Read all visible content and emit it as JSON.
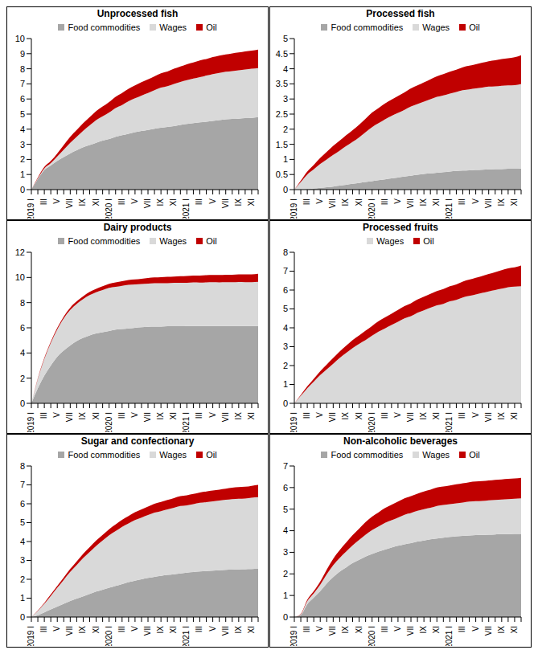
{
  "chart_data": [
    {
      "type": "area",
      "title": "Unprocessed fish",
      "stacked": true,
      "grid": false,
      "legend": "top",
      "categories": [
        "2019 I",
        null,
        "III",
        null,
        "V",
        null,
        "VII",
        null,
        "IX",
        null,
        "XI",
        null,
        "2020 I",
        null,
        "III",
        null,
        "V",
        null,
        "VII",
        null,
        "IX",
        null,
        "XI",
        null,
        "2021 I",
        null,
        "III",
        null,
        "V",
        null,
        "VII",
        null,
        "IX",
        null,
        "XI",
        null
      ],
      "ylim": [
        0,
        10
      ],
      "yticks": [
        0,
        1,
        2,
        3,
        4,
        5,
        6,
        7,
        8,
        9,
        10
      ],
      "series": [
        {
          "name": "Food commodities",
          "color": "#a6a6a6",
          "values": [
            0,
            0.7,
            1.3,
            1.6,
            1.9,
            2.15,
            2.4,
            2.6,
            2.8,
            2.95,
            3.1,
            3.25,
            3.35,
            3.5,
            3.6,
            3.7,
            3.8,
            3.88,
            3.95,
            4.03,
            4.1,
            4.15,
            4.2,
            4.28,
            4.35,
            4.4,
            4.45,
            4.5,
            4.55,
            4.6,
            4.65,
            4.68,
            4.7,
            4.73,
            4.75,
            4.8
          ]
        },
        {
          "name": "Wages",
          "color": "#d9d9d9",
          "values": [
            0,
            0.05,
            0.1,
            0.15,
            0.3,
            0.5,
            0.7,
            0.9,
            1.1,
            1.3,
            1.5,
            1.6,
            1.75,
            1.9,
            2.0,
            2.15,
            2.25,
            2.35,
            2.45,
            2.55,
            2.65,
            2.7,
            2.8,
            2.85,
            2.9,
            2.95,
            3.0,
            3.05,
            3.1,
            3.12,
            3.15,
            3.17,
            3.2,
            3.22,
            3.25,
            3.25
          ]
        },
        {
          "name": "Oil",
          "color": "#c00000",
          "values": [
            0,
            0.05,
            0.1,
            0.15,
            0.2,
            0.3,
            0.4,
            0.45,
            0.5,
            0.55,
            0.6,
            0.65,
            0.7,
            0.75,
            0.8,
            0.82,
            0.85,
            0.88,
            0.9,
            0.92,
            0.95,
            0.97,
            1.0,
            1.02,
            1.05,
            1.07,
            1.1,
            1.1,
            1.12,
            1.15,
            1.15,
            1.17,
            1.18,
            1.2,
            1.2,
            1.22
          ]
        }
      ]
    },
    {
      "type": "area",
      "title": "Processed fish",
      "stacked": true,
      "grid": false,
      "legend": "top",
      "categories": [
        "2019 I",
        null,
        "III",
        null,
        "V",
        null,
        "VII",
        null,
        "IX",
        null,
        "XI",
        null,
        "2020 I",
        null,
        "III",
        null,
        "V",
        null,
        "VII",
        null,
        "IX",
        null,
        "XI",
        null,
        "2021 I",
        null,
        "III",
        null,
        "V",
        null,
        "VII",
        null,
        "IX",
        null,
        "XI",
        null
      ],
      "ylim": [
        0,
        5
      ],
      "yticks": [
        0,
        0.5,
        1,
        1.5,
        2,
        2.5,
        3,
        3.5,
        4,
        4.5,
        5
      ],
      "series": [
        {
          "name": "Food commodities",
          "color": "#a6a6a6",
          "values": [
            0,
            0.01,
            0.02,
            0.04,
            0.06,
            0.08,
            0.1,
            0.13,
            0.16,
            0.19,
            0.22,
            0.25,
            0.28,
            0.31,
            0.34,
            0.37,
            0.4,
            0.43,
            0.46,
            0.49,
            0.52,
            0.54,
            0.56,
            0.58,
            0.6,
            0.62,
            0.63,
            0.64,
            0.65,
            0.66,
            0.67,
            0.68,
            0.68,
            0.69,
            0.69,
            0.7
          ]
        },
        {
          "name": "Wages",
          "color": "#d9d9d9",
          "values": [
            0,
            0.24,
            0.48,
            0.63,
            0.79,
            0.92,
            1.05,
            1.16,
            1.28,
            1.39,
            1.51,
            1.65,
            1.79,
            1.89,
            1.99,
            2.07,
            2.14,
            2.21,
            2.29,
            2.34,
            2.39,
            2.45,
            2.51,
            2.54,
            2.58,
            2.61,
            2.66,
            2.68,
            2.7,
            2.72,
            2.74,
            2.74,
            2.76,
            2.76,
            2.77,
            2.8
          ]
        },
        {
          "name": "Oil",
          "color": "#c00000",
          "values": [
            0,
            0.05,
            0.1,
            0.15,
            0.2,
            0.25,
            0.3,
            0.33,
            0.36,
            0.39,
            0.42,
            0.45,
            0.48,
            0.5,
            0.52,
            0.54,
            0.56,
            0.58,
            0.6,
            0.62,
            0.64,
            0.66,
            0.68,
            0.7,
            0.72,
            0.74,
            0.76,
            0.78,
            0.8,
            0.82,
            0.84,
            0.86,
            0.88,
            0.9,
            0.92,
            0.95
          ]
        }
      ]
    },
    {
      "type": "area",
      "title": "Dairy products",
      "stacked": true,
      "grid": false,
      "legend": "top",
      "categories": [
        "2019 I",
        null,
        "III",
        null,
        "V",
        null,
        "VII",
        null,
        "IX",
        null,
        "XI",
        null,
        "2020 I",
        null,
        "III",
        null,
        "V",
        null,
        "VII",
        null,
        "IX",
        null,
        "XI",
        null,
        "2021 I",
        null,
        "III",
        null,
        "V",
        null,
        "VII",
        null,
        "IX",
        null,
        "XI",
        null
      ],
      "ylim": [
        0,
        12
      ],
      "yticks": [
        0,
        2,
        4,
        6,
        8,
        10,
        12
      ],
      "series": [
        {
          "name": "Food commodities",
          "color": "#a6a6a6",
          "values": [
            0,
            1.2,
            2.2,
            3.0,
            3.7,
            4.2,
            4.6,
            4.95,
            5.2,
            5.4,
            5.55,
            5.65,
            5.75,
            5.85,
            5.9,
            5.95,
            6.0,
            6.05,
            6.08,
            6.1,
            6.1,
            6.12,
            6.12,
            6.13,
            6.15,
            6.15,
            6.15,
            6.15,
            6.15,
            6.15,
            6.15,
            6.15,
            6.15,
            6.15,
            6.15,
            6.15
          ]
        },
        {
          "name": "Wages",
          "color": "#d9d9d9",
          "values": [
            0,
            0.75,
            1.32,
            1.8,
            2.18,
            2.55,
            2.82,
            2.95,
            3.08,
            3.2,
            3.28,
            3.35,
            3.43,
            3.41,
            3.44,
            3.47,
            3.45,
            3.43,
            3.43,
            3.44,
            3.44,
            3.43,
            3.45,
            3.45,
            3.43,
            3.45,
            3.44,
            3.46,
            3.47,
            3.46,
            3.47,
            3.47,
            3.49,
            3.48,
            3.47,
            3.5
          ]
        },
        {
          "name": "Oil",
          "color": "#c00000",
          "values": [
            0,
            0.05,
            0.08,
            0.1,
            0.12,
            0.15,
            0.18,
            0.2,
            0.22,
            0.25,
            0.27,
            0.3,
            0.32,
            0.34,
            0.36,
            0.38,
            0.4,
            0.42,
            0.44,
            0.46,
            0.48,
            0.5,
            0.5,
            0.52,
            0.54,
            0.55,
            0.56,
            0.57,
            0.58,
            0.59,
            0.6,
            0.6,
            0.61,
            0.62,
            0.63,
            0.65
          ]
        }
      ]
    },
    {
      "type": "area",
      "title": "Processed fruits",
      "stacked": true,
      "grid": false,
      "legend": "top",
      "categories": [
        "2019 I",
        null,
        "III",
        null,
        "V",
        null,
        "VII",
        null,
        "IX",
        null,
        "XI",
        null,
        "2020 I",
        null,
        "III",
        null,
        "V",
        null,
        "VII",
        null,
        "IX",
        null,
        "XI",
        null,
        "2021 I",
        null,
        "III",
        null,
        "V",
        null,
        "VII",
        null,
        "IX",
        null,
        "XI",
        null
      ],
      "ylim": [
        0,
        8
      ],
      "yticks": [
        0,
        1,
        2,
        3,
        4,
        5,
        6,
        7,
        8
      ],
      "series": [
        {
          "name": "Wages",
          "color": "#d9d9d9",
          "values": [
            0,
            0.4,
            0.8,
            1.15,
            1.5,
            1.8,
            2.1,
            2.4,
            2.67,
            2.93,
            3.15,
            3.35,
            3.58,
            3.8,
            3.97,
            4.15,
            4.32,
            4.5,
            4.62,
            4.8,
            4.93,
            5.06,
            5.19,
            5.27,
            5.4,
            5.48,
            5.61,
            5.69,
            5.77,
            5.85,
            5.93,
            6.0,
            6.07,
            6.15,
            6.18,
            6.2
          ]
        },
        {
          "name": "Oil",
          "color": "#c00000",
          "values": [
            0,
            0.05,
            0.1,
            0.15,
            0.2,
            0.25,
            0.3,
            0.35,
            0.38,
            0.42,
            0.45,
            0.5,
            0.52,
            0.55,
            0.58,
            0.6,
            0.63,
            0.65,
            0.68,
            0.7,
            0.72,
            0.74,
            0.76,
            0.78,
            0.8,
            0.82,
            0.84,
            0.86,
            0.88,
            0.9,
            0.92,
            0.95,
            0.98,
            1.0,
            1.02,
            1.1
          ]
        }
      ]
    },
    {
      "type": "area",
      "title": "Sugar and confectionary",
      "stacked": true,
      "grid": false,
      "legend": "top",
      "categories": [
        "2019 I",
        null,
        "III",
        null,
        "V",
        null,
        "VII",
        null,
        "IX",
        null,
        "XI",
        null,
        "2020 I",
        null,
        "III",
        null,
        "V",
        null,
        "VII",
        null,
        "IX",
        null,
        "XI",
        null,
        "2021 I",
        null,
        "III",
        null,
        "V",
        null,
        "VII",
        null,
        "IX",
        null,
        "XI",
        null
      ],
      "ylim": [
        0,
        8
      ],
      "yticks": [
        0,
        1,
        2,
        3,
        4,
        5,
        6,
        7,
        8
      ],
      "series": [
        {
          "name": "Food commodities",
          "color": "#a6a6a6",
          "values": [
            0,
            0.1,
            0.25,
            0.4,
            0.55,
            0.7,
            0.85,
            0.98,
            1.1,
            1.22,
            1.35,
            1.45,
            1.55,
            1.65,
            1.75,
            1.85,
            1.93,
            2.0,
            2.07,
            2.13,
            2.18,
            2.23,
            2.27,
            2.31,
            2.35,
            2.38,
            2.41,
            2.44,
            2.46,
            2.48,
            2.5,
            2.51,
            2.52,
            2.53,
            2.54,
            2.55
          ]
        },
        {
          "name": "Wages",
          "color": "#d9d9d9",
          "values": [
            0,
            0.23,
            0.45,
            0.72,
            1.0,
            1.27,
            1.54,
            1.78,
            2.03,
            2.23,
            2.42,
            2.6,
            2.78,
            2.9,
            3.03,
            3.11,
            3.21,
            3.27,
            3.33,
            3.4,
            3.43,
            3.47,
            3.52,
            3.57,
            3.57,
            3.6,
            3.64,
            3.65,
            3.67,
            3.69,
            3.71,
            3.74,
            3.75,
            3.75,
            3.78,
            3.8
          ]
        },
        {
          "name": "Oil",
          "color": "#c00000",
          "values": [
            0,
            0.02,
            0.05,
            0.08,
            0.1,
            0.13,
            0.16,
            0.19,
            0.22,
            0.25,
            0.28,
            0.3,
            0.32,
            0.35,
            0.37,
            0.39,
            0.41,
            0.43,
            0.45,
            0.47,
            0.49,
            0.5,
            0.51,
            0.52,
            0.53,
            0.54,
            0.55,
            0.56,
            0.57,
            0.58,
            0.59,
            0.6,
            0.61,
            0.62,
            0.63,
            0.65
          ]
        }
      ]
    },
    {
      "type": "area",
      "title": "Non-alcoholic beverages",
      "stacked": true,
      "grid": false,
      "legend": "top",
      "categories": [
        "2019 I",
        null,
        "III",
        null,
        "V",
        null,
        "VII",
        null,
        "IX",
        null,
        "XI",
        null,
        "2020 I",
        null,
        "III",
        null,
        "V",
        null,
        "VII",
        null,
        "IX",
        null,
        "XI",
        null,
        "2021 I",
        null,
        "III",
        null,
        "V",
        null,
        "VII",
        null,
        "IX",
        null,
        "XI",
        null
      ],
      "ylim": [
        0,
        7
      ],
      "yticks": [
        0,
        1,
        2,
        3,
        4,
        5,
        6,
        7
      ],
      "series": [
        {
          "name": "Food commodities",
          "color": "#a6a6a6",
          "values": [
            0,
            0.1,
            0.6,
            0.9,
            1.2,
            1.55,
            1.85,
            2.1,
            2.3,
            2.5,
            2.65,
            2.8,
            2.92,
            3.03,
            3.13,
            3.22,
            3.3,
            3.37,
            3.43,
            3.5,
            3.55,
            3.6,
            3.64,
            3.68,
            3.71,
            3.74,
            3.76,
            3.78,
            3.8,
            3.81,
            3.82,
            3.83,
            3.84,
            3.84,
            3.85,
            3.85
          ]
        },
        {
          "name": "Wages",
          "color": "#d9d9d9",
          "values": [
            0,
            0.03,
            0.14,
            0.2,
            0.3,
            0.43,
            0.55,
            0.64,
            0.73,
            0.82,
            0.92,
            1.02,
            1.11,
            1.17,
            1.24,
            1.27,
            1.31,
            1.37,
            1.39,
            1.42,
            1.45,
            1.46,
            1.51,
            1.51,
            1.52,
            1.53,
            1.55,
            1.57,
            1.57,
            1.57,
            1.59,
            1.6,
            1.61,
            1.62,
            1.63,
            1.65
          ]
        },
        {
          "name": "Oil",
          "color": "#c00000",
          "values": [
            0,
            0.02,
            0.06,
            0.1,
            0.15,
            0.22,
            0.3,
            0.36,
            0.42,
            0.48,
            0.53,
            0.58,
            0.62,
            0.65,
            0.68,
            0.71,
            0.74,
            0.76,
            0.78,
            0.8,
            0.82,
            0.84,
            0.85,
            0.86,
            0.87,
            0.88,
            0.89,
            0.9,
            0.91,
            0.92,
            0.92,
            0.93,
            0.93,
            0.94,
            0.94,
            0.95
          ]
        }
      ]
    }
  ]
}
